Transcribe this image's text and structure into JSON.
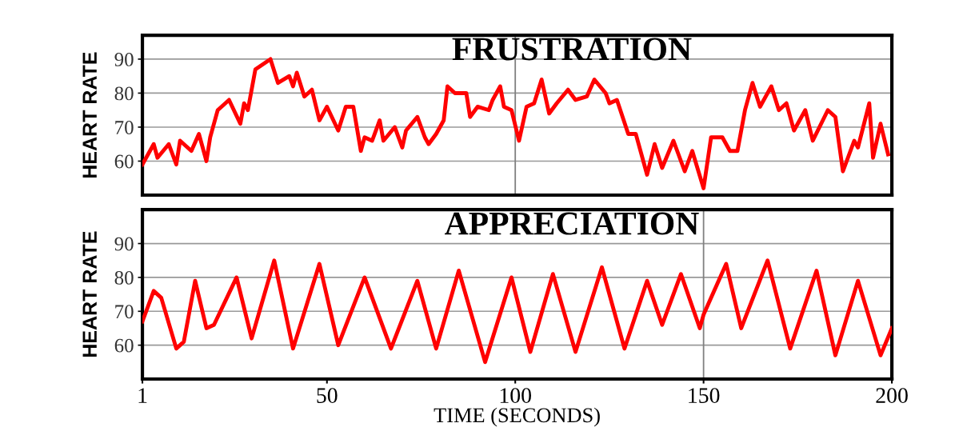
{
  "chart_data": [
    {
      "type": "line",
      "title": "FRUSTRATION",
      "ylabel": "HEART RATE",
      "xlim": [
        1,
        200
      ],
      "ylim": [
        50,
        97
      ],
      "yticks": [
        60,
        70,
        80,
        90
      ],
      "grid": "y",
      "tick_labels": "y",
      "marker": "none",
      "line_style": "solid",
      "ref_lines": [
        {
          "axis": "x",
          "value": 100,
          "color": "#808080"
        }
      ],
      "series": [
        {
          "color": "#ff0000",
          "x": [
            1,
            4,
            5,
            8,
            10,
            11,
            14,
            16,
            18,
            19,
            21,
            24,
            27,
            28,
            29,
            31,
            35,
            37,
            40,
            41,
            42,
            44,
            46,
            48,
            50,
            53,
            55,
            57,
            59,
            60,
            62,
            64,
            65,
            68,
            70,
            71,
            74,
            76,
            77,
            79,
            81,
            82,
            84,
            87,
            88,
            90,
            93,
            94,
            96,
            97,
            99,
            101,
            103,
            105,
            107,
            109,
            111,
            114,
            116,
            119,
            121,
            124,
            125,
            127,
            130,
            132,
            135,
            137,
            139,
            142,
            145,
            147,
            150,
            152,
            155,
            157,
            159,
            161,
            163,
            165,
            168,
            170,
            172,
            174,
            177,
            179,
            183,
            185,
            187,
            190,
            191,
            194,
            195,
            197,
            199
          ],
          "values": [
            59,
            65,
            61,
            65,
            59,
            66,
            63,
            68,
            60,
            67,
            75,
            78,
            71,
            77,
            75,
            87,
            90,
            83,
            85,
            82,
            86,
            79,
            81,
            72,
            76,
            69,
            76,
            76,
            63,
            67,
            66,
            72,
            66,
            70,
            64,
            69,
            73,
            67,
            65,
            68,
            72,
            82,
            80,
            80,
            73,
            76,
            75,
            78,
            82,
            76,
            75,
            66,
            76,
            77,
            84,
            74,
            77,
            81,
            78,
            79,
            84,
            80,
            77,
            78,
            68,
            68,
            56,
            65,
            58,
            66,
            57,
            63,
            52,
            67,
            67,
            63,
            63,
            75,
            83,
            76,
            82,
            75,
            77,
            69,
            75,
            66,
            75,
            73,
            57,
            66,
            64,
            77,
            61,
            71,
            62
          ]
        }
      ]
    },
    {
      "type": "line",
      "title": "APPRECIATION",
      "ylabel": "HEART RATE",
      "xlabel": "TIME (SECONDS)",
      "xlim": [
        1,
        200
      ],
      "ylim": [
        50,
        100
      ],
      "xticks": [
        1,
        50,
        100,
        150,
        200
      ],
      "yticks": [
        60,
        70,
        80,
        90
      ],
      "grid": "y",
      "marker": "none",
      "line_style": "solid",
      "ref_lines": [
        {
          "axis": "x",
          "value": 150,
          "color": "#808080"
        }
      ],
      "series": [
        {
          "color": "#ff0000",
          "x": [
            1,
            4,
            6,
            10,
            12,
            15,
            18,
            20,
            26,
            30,
            36,
            41,
            48,
            53,
            60,
            67,
            74,
            79,
            85,
            92,
            99,
            104,
            110,
            116,
            123,
            129,
            135,
            139,
            144,
            149,
            150,
            156,
            160,
            167,
            173,
            180,
            185,
            191,
            197,
            200
          ],
          "values": [
            67,
            76,
            74,
            59,
            61,
            79,
            65,
            66,
            80,
            62,
            85,
            59,
            84,
            60,
            80,
            59,
            79,
            59,
            82,
            55,
            80,
            58,
            81,
            58,
            83,
            59,
            79,
            66,
            81,
            65,
            69,
            84,
            65,
            85,
            59,
            82,
            57,
            79,
            57,
            65
          ]
        }
      ]
    }
  ]
}
